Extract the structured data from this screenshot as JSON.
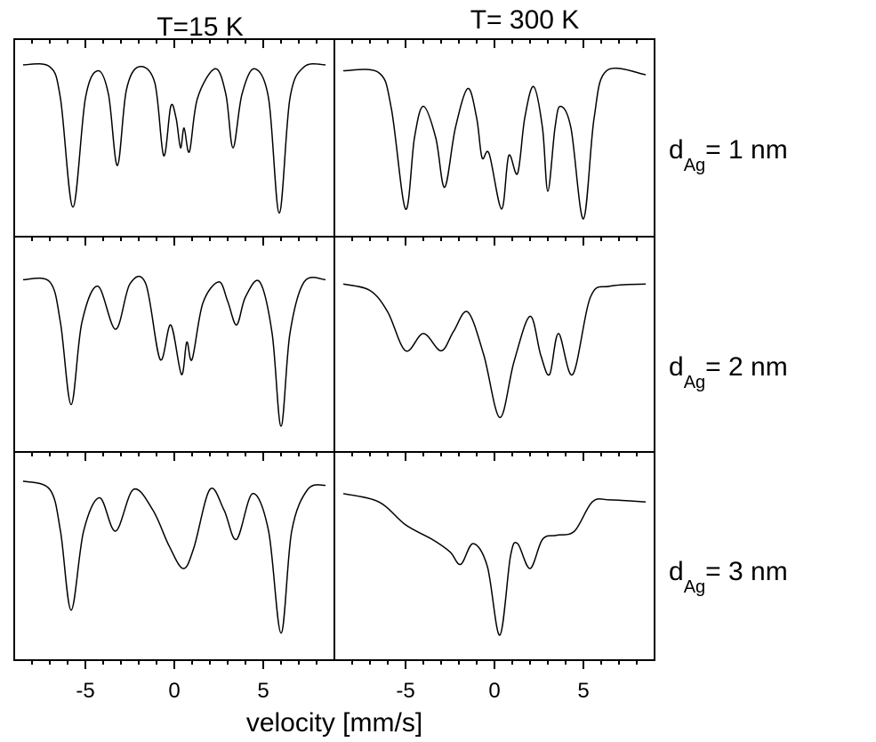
{
  "column_titles": [
    "T=15 K",
    "T= 300 K"
  ],
  "row_labels": [
    {
      "main": "d",
      "sub": "Ag",
      "rest": "= 1 nm"
    },
    {
      "main": "d",
      "sub": "Ag",
      "rest": "= 2 nm"
    },
    {
      "main": "d",
      "sub": "Ag",
      "rest": "= 3 nm"
    }
  ],
  "x_label": "velocity [mm/s]",
  "chart_data": [
    {
      "type": "line",
      "color": "#000000",
      "xlim": [
        -9,
        9
      ],
      "ylim": [
        0,
        100
      ],
      "xticks": [
        -5,
        0,
        5
      ],
      "xminorticks": [
        -8,
        -7,
        -6,
        -4,
        -3,
        -2,
        -1,
        1,
        2,
        3,
        4,
        6,
        7,
        8
      ],
      "x": [
        -8.5,
        -7,
        -6.4,
        -5.7,
        -5,
        -4.3,
        -3.7,
        -3.2,
        -2.7,
        -2,
        -1.1,
        -0.6,
        -0.2,
        0.1,
        0.35,
        0.55,
        0.85,
        1.3,
        2.3,
        2.9,
        3.3,
        3.8,
        4.5,
        5.3,
        5.9,
        6.5,
        7.3,
        8.5
      ],
      "values": [
        87,
        86,
        70,
        15,
        70,
        84,
        72,
        36,
        74,
        86,
        78,
        41,
        66,
        60,
        45,
        55,
        43,
        70,
        85,
        72,
        45,
        72,
        85,
        70,
        12,
        70,
        86,
        87
      ]
    },
    {
      "type": "line",
      "color": "#000000",
      "xlim": [
        -9,
        9
      ],
      "ylim": [
        0,
        100
      ],
      "xticks": [
        -5,
        0,
        5
      ],
      "xminorticks": [
        -8,
        -7,
        -6,
        -4,
        -3,
        -2,
        -1,
        1,
        2,
        3,
        4,
        6,
        7,
        8
      ],
      "x": [
        -8.5,
        -6.5,
        -5.8,
        -5,
        -4.5,
        -4,
        -3.3,
        -2.8,
        -2.2,
        -1.5,
        -1,
        -0.7,
        -0.3,
        0.4,
        0.8,
        1.3,
        1.7,
        2.2,
        2.7,
        3,
        3.4,
        3.7,
        4.3,
        5,
        5.6,
        6.3,
        8.5
      ],
      "values": [
        84,
        83,
        65,
        14,
        50,
        66,
        50,
        25,
        55,
        75,
        60,
        40,
        42,
        14,
        41,
        32,
        60,
        76,
        55,
        23,
        55,
        66,
        55,
        9,
        60,
        84,
        82
      ]
    },
    {
      "type": "line",
      "color": "#000000",
      "xlim": [
        -9,
        9
      ],
      "ylim": [
        0,
        100
      ],
      "xticks": [
        -5,
        0,
        5
      ],
      "xminorticks": [
        -8,
        -7,
        -6,
        -4,
        -3,
        -2,
        -1,
        1,
        2,
        3,
        4,
        6,
        7,
        8
      ],
      "x": [
        -8.5,
        -7,
        -6.4,
        -5.8,
        -5.2,
        -4.3,
        -3.3,
        -2.5,
        -1.6,
        -0.8,
        -0.2,
        0.4,
        0.7,
        1,
        1.6,
        2.5,
        3,
        3.5,
        4,
        4.8,
        5.5,
        6,
        6.5,
        7.3,
        8.5
      ],
      "values": [
        80,
        79,
        60,
        22,
        60,
        77,
        57,
        78,
        78,
        43,
        59,
        36,
        51,
        43,
        69,
        79,
        70,
        59,
        72,
        79,
        55,
        12,
        55,
        79,
        80
      ]
    },
    {
      "type": "line",
      "color": "#000000",
      "xlim": [
        -9,
        9
      ],
      "ylim": [
        0,
        100
      ],
      "xticks": [
        -5,
        0,
        5
      ],
      "xminorticks": [
        -8,
        -7,
        -6,
        -4,
        -3,
        -2,
        -1,
        1,
        2,
        3,
        4,
        6,
        7,
        8
      ],
      "x": [
        -8.5,
        -7,
        -6,
        -5,
        -4,
        -3,
        -2.3,
        -1.5,
        -0.6,
        0.3,
        1.1,
        2,
        2.6,
        3.1,
        3.6,
        4.4,
        5.4,
        6.5,
        8.5
      ],
      "values": [
        78,
        75,
        65,
        47,
        55,
        47,
        56,
        65,
        45,
        16,
        42,
        63,
        45,
        36,
        55,
        36,
        72,
        77,
        78
      ]
    },
    {
      "type": "line",
      "color": "#000000",
      "xlim": [
        -9,
        9
      ],
      "ylim": [
        0,
        100
      ],
      "xticks": [
        -5,
        0,
        5
      ],
      "xminorticks": [
        -8,
        -7,
        -6,
        -4,
        -3,
        -2,
        -1,
        1,
        2,
        3,
        4,
        6,
        7,
        8
      ],
      "x": [
        -8.5,
        -7,
        -6.4,
        -5.8,
        -5.1,
        -4.2,
        -3.3,
        -2.3,
        -1.2,
        -0.3,
        0.5,
        1.1,
        2,
        2.8,
        3.5,
        4.4,
        5.3,
        6,
        6.6,
        7.5,
        8.5
      ],
      "values": [
        86,
        82,
        62,
        24,
        62,
        78,
        62,
        82,
        72,
        55,
        44,
        54,
        82,
        72,
        58,
        80,
        62,
        13,
        62,
        82,
        84
      ]
    },
    {
      "type": "line",
      "color": "#000000",
      "xlim": [
        -9,
        9
      ],
      "ylim": [
        0,
        100
      ],
      "xticks": [
        -5,
        0,
        5
      ],
      "xminorticks": [
        -8,
        -7,
        -6,
        -4,
        -3,
        -2,
        -1,
        1,
        2,
        3,
        4,
        6,
        7,
        8
      ],
      "x": [
        -8.5,
        -6.5,
        -5,
        -3.5,
        -2.5,
        -1.9,
        -1.2,
        -0.4,
        0.3,
        0.9,
        1.3,
        2,
        2.7,
        3.5,
        4.5,
        5.5,
        6.5,
        8.5
      ],
      "values": [
        80,
        76,
        65,
        58,
        52,
        46,
        56,
        45,
        12,
        50,
        56,
        44,
        58,
        60,
        62,
        76,
        77,
        76
      ]
    }
  ]
}
